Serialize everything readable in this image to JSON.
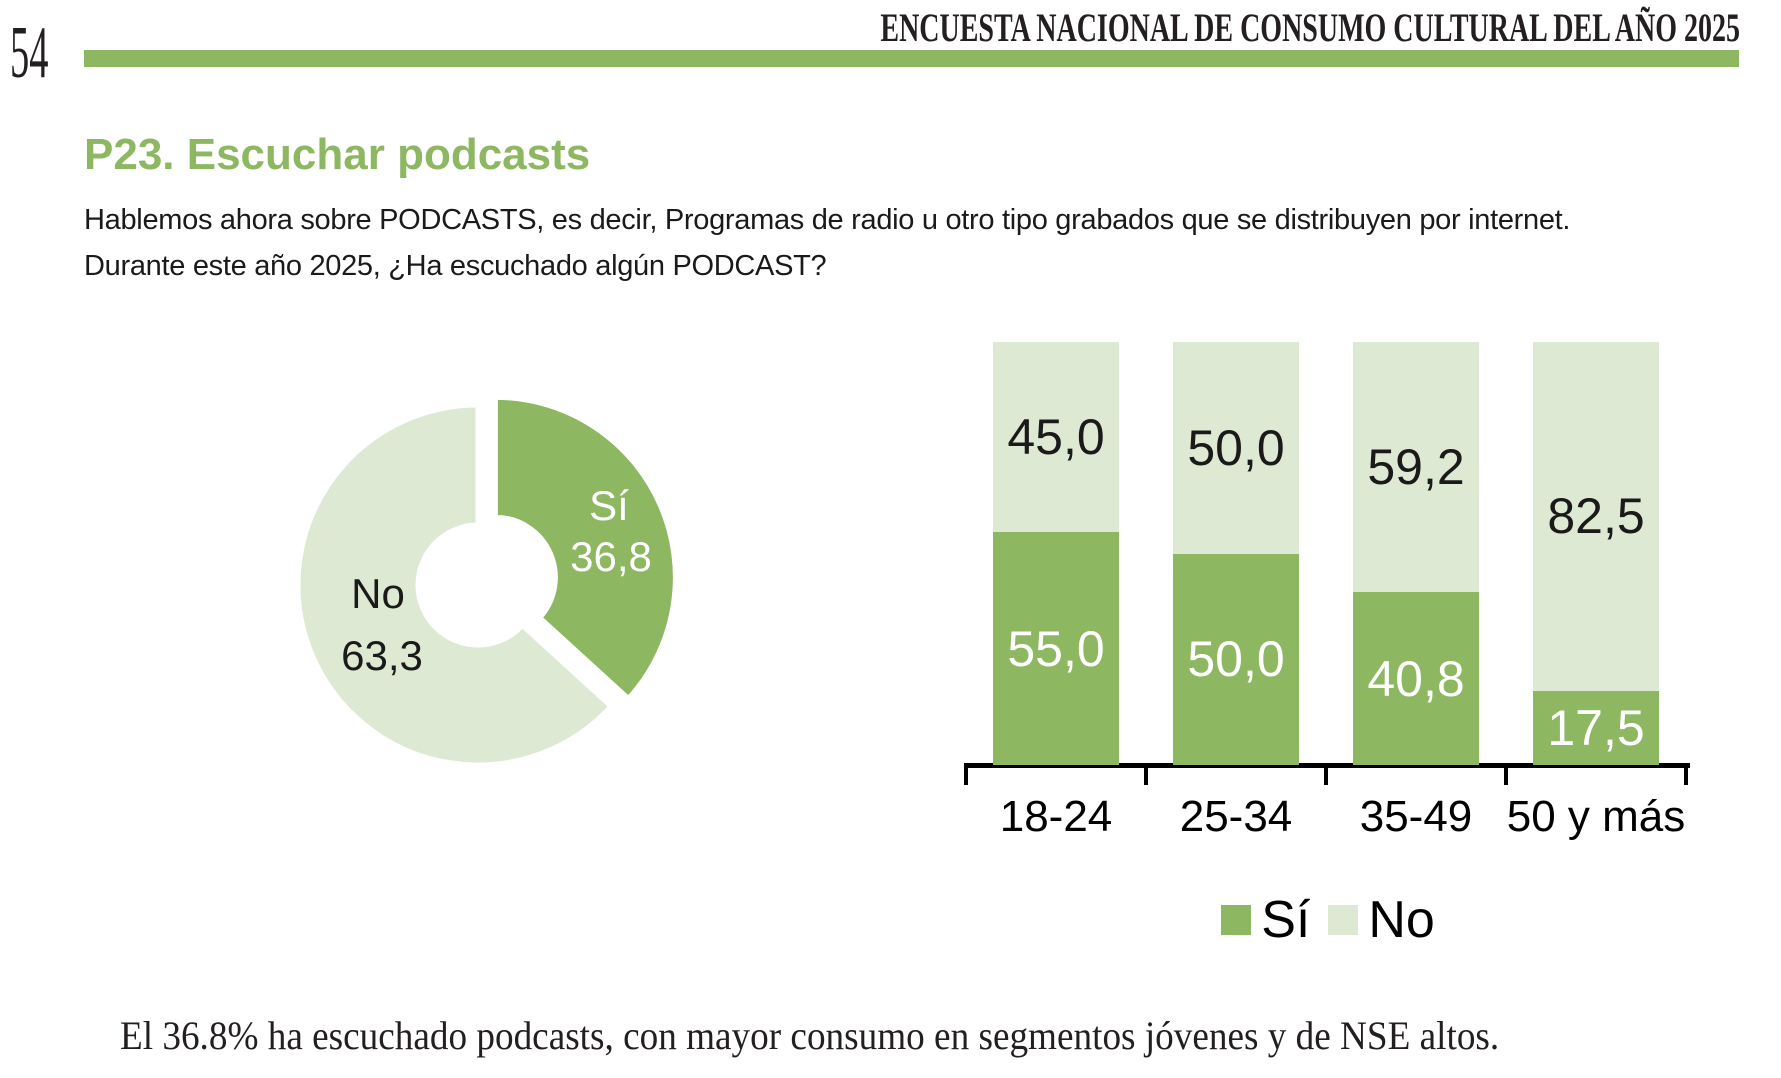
{
  "page": {
    "number": "54",
    "header": "ENCUESTA NACIONAL DE CONSUMO CULTURAL DEL AÑO 2025"
  },
  "colors": {
    "accent_green": "#8DB761",
    "light_green": "#DDE9D2",
    "text_black": "#1a1a1a",
    "white": "#ffffff"
  },
  "question": {
    "title": "P23. Escuchar podcasts",
    "line1": "Hablemos ahora sobre PODCASTS, es decir, Programas de radio u otro tipo grabados que se distribuyen por internet.",
    "line2": "Durante este año 2025, ¿Ha escuchado algún PODCAST?"
  },
  "chart_data": [
    {
      "type": "pie",
      "subtype": "donut",
      "start_angle_deg": 0,
      "exploded_slice": "Sí",
      "slices": [
        {
          "label": "Sí",
          "value": 36.8,
          "display": "36,8",
          "color": "#8DB761",
          "label_color": "#ffffff"
        },
        {
          "label": "No",
          "value": 63.3,
          "display": "63,3",
          "color": "#DDE9D2",
          "label_color": "#1a1a1a"
        }
      ]
    },
    {
      "type": "bar",
      "stacked": true,
      "ylim": [
        0,
        100
      ],
      "categories": [
        "18-24",
        "25-34",
        "35-49",
        "50 y más"
      ],
      "series": [
        {
          "name": "Sí",
          "color": "#8DB761",
          "values": [
            55.0,
            50.0,
            40.8,
            17.5
          ],
          "display_values": [
            "55,0",
            "50,0",
            "40,8",
            "17,5"
          ]
        },
        {
          "name": "No",
          "color": "#DDE9D2",
          "values": [
            45.0,
            50.0,
            59.2,
            82.5
          ],
          "display_values": [
            "45,0",
            "50,0",
            "59,2",
            "82,5"
          ]
        }
      ],
      "legend": [
        "Sí",
        "No"
      ],
      "legend_position": "bottom"
    }
  ],
  "caption": "El 36.8% ha escuchado podcasts, con mayor consumo en segmentos jóvenes y de NSE altos."
}
